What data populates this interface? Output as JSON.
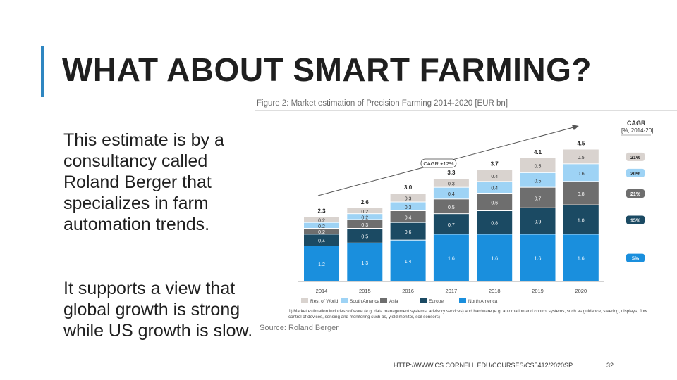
{
  "slide": {
    "title": "WHAT ABOUT SMART FARMING?",
    "paragraph1": "This estimate is by a consultancy called Roland Berger that specializes in farm automation trends.",
    "paragraph2": "It supports a view that global growth is strong while US growth is slow.",
    "footer_url": "HTTP://WWW.CS.CORNELL.EDU/COURSES/CS5412/2020SP",
    "page_number": "32"
  },
  "figure": {
    "caption": "Figure 2: Market estimation of Precision Farming 2014-2020 [EUR bn]",
    "footnote_line1": "1) Market estimation includes software (e.g. data management systems, advisory services) and hardware (e.g. automation and control systems, such as guidance, steering, displays, flow",
    "footnote_line2": "control of devices, sensing and monitoring such as, yield monitor, soil sensors)",
    "source": "Source: Roland Berger",
    "cagr_header_line1": "CAGR",
    "cagr_header_line2": "[%, 2014-20]",
    "cagr_callout": "CAGR +12%"
  },
  "chart_data": {
    "type": "bar",
    "stacked": true,
    "categories": [
      "2014",
      "2015",
      "2016",
      "2017",
      "2018",
      "2019",
      "2020"
    ],
    "series": [
      {
        "name": "North America",
        "color": "#1a8fdd",
        "values": [
          1.2,
          1.3,
          1.4,
          1.6,
          1.6,
          1.6,
          1.6
        ],
        "cagr": "5%"
      },
      {
        "name": "Europe",
        "color": "#1b4a63",
        "values": [
          0.4,
          0.5,
          0.6,
          0.7,
          0.8,
          0.9,
          1.0
        ],
        "cagr": "15%"
      },
      {
        "name": "Asia",
        "color": "#6e6e6e",
        "values": [
          0.2,
          0.3,
          0.4,
          0.5,
          0.6,
          0.7,
          0.8
        ],
        "cagr": "21%"
      },
      {
        "name": "South America",
        "color": "#9ed3f5",
        "values": [
          0.2,
          0.2,
          0.3,
          0.4,
          0.4,
          0.5,
          0.6
        ],
        "cagr": "20%"
      },
      {
        "name": "Rest of World",
        "color": "#d9d3cf",
        "values": [
          0.2,
          0.2,
          0.3,
          0.3,
          0.4,
          0.5,
          0.5
        ],
        "cagr": "21%"
      }
    ],
    "totals": [
      "2.3",
      "2.6",
      "3.0",
      "3.3",
      "3.7",
      "4.1",
      "4.5"
    ],
    "label_values": [
      [
        "1.2",
        "1.3",
        "1.4",
        "1.6",
        "1.6",
        "1.6",
        "1.6"
      ],
      [
        "0.4",
        "0.5",
        "0.6",
        "0.7",
        "0.8",
        "0.9",
        "1.0"
      ],
      [
        "0.2",
        "0.3",
        "0.4",
        "0.5",
        "0.6",
        "0.7",
        "0.8"
      ],
      [
        "0.2",
        "0.2",
        "0.3",
        "0.4",
        "0.4",
        "0.5",
        "0.6"
      ],
      [
        "0.2",
        "0.2",
        "0.3",
        "0.3",
        "0.4",
        "0.5",
        "0.5"
      ]
    ],
    "ylim": [
      0,
      4.8
    ],
    "legend_placement": "bottom",
    "grid": false
  }
}
